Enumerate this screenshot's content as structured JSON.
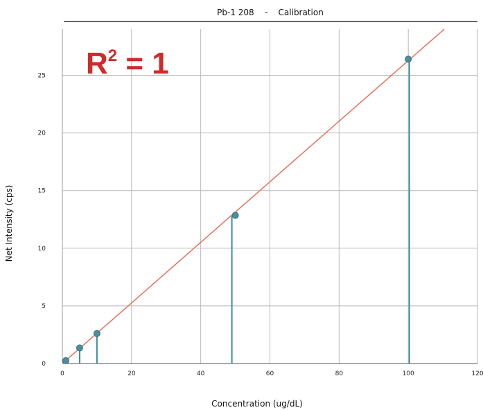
{
  "chart_data": {
    "type": "scatter",
    "title": "Pb-1 208    -    Calibration",
    "xlabel": "Concentration (ug/dL)",
    "ylabel": "Net Intensity (cps)",
    "xlim": [
      0,
      120
    ],
    "ylim": [
      0,
      29
    ],
    "xticks": [
      0,
      20,
      40,
      60,
      80,
      100,
      120
    ],
    "yticks": [
      0,
      5,
      10,
      15,
      20,
      25
    ],
    "grid": true,
    "annotation": {
      "base": "R",
      "sup": "2",
      "rest": " = 1",
      "color": "#d12a2a"
    },
    "series": [
      {
        "x": [
          1,
          5,
          10,
          50,
          100
        ],
        "y": [
          0.25,
          1.35,
          2.6,
          12.85,
          26.4
        ],
        "color": "#4a8fa0"
      }
    ],
    "fit_line": {
      "x": [
        0,
        110.4
      ],
      "y": [
        0,
        29
      ],
      "color": "#e8715f"
    },
    "stems": {
      "x": [
        5,
        10,
        49,
        100.3
      ],
      "color": "#3a8fa0"
    }
  }
}
